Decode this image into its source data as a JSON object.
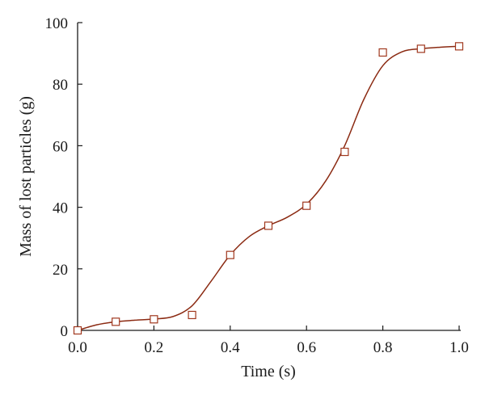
{
  "chart_data": {
    "type": "scatter",
    "title": "",
    "xlabel": "Time (s)",
    "ylabel": "Mass of lost particles (g)",
    "xlim": [
      0,
      1.0
    ],
    "ylim": [
      0,
      100
    ],
    "x_ticks": [
      "0.0",
      "0.2",
      "0.4",
      "0.6",
      "0.8",
      "1.0"
    ],
    "y_ticks": [
      "0",
      "20",
      "40",
      "60",
      "80",
      "100"
    ],
    "grid": false,
    "legend": "none",
    "series": [
      {
        "marker": "open-square",
        "color": "#a0381e",
        "x": [
          0.0,
          0.1,
          0.2,
          0.3,
          0.4,
          0.5,
          0.6,
          0.7,
          0.8,
          0.9,
          1.0
        ],
        "y": [
          0.0,
          2.8,
          3.6,
          5.0,
          24.5,
          34.0,
          40.5,
          58.0,
          90.3,
          91.5,
          92.3
        ]
      }
    ],
    "fit_curve": {
      "style": "smooth-line",
      "color": "#8b2a12",
      "x": [
        0.0,
        0.05,
        0.1,
        0.15,
        0.2,
        0.25,
        0.3,
        0.35,
        0.4,
        0.45,
        0.5,
        0.55,
        0.6,
        0.65,
        0.7,
        0.75,
        0.8,
        0.85,
        0.9,
        0.95,
        1.0
      ],
      "y": [
        0.0,
        1.8,
        2.8,
        3.3,
        3.7,
        4.5,
        8.0,
        16.0,
        24.5,
        30.5,
        34.0,
        36.8,
        41.0,
        48.5,
        60.0,
        75.0,
        86.0,
        90.5,
        91.5,
        92.0,
        92.3
      ]
    }
  }
}
